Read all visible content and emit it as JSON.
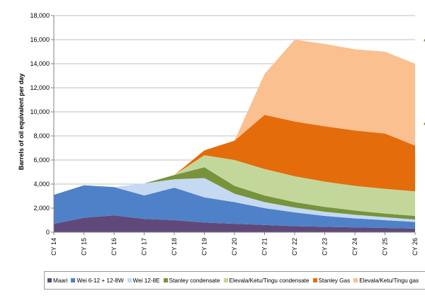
{
  "chart_data": {
    "type": "area",
    "stacked": true,
    "ylabel": "Barrels of oil equivalent per day",
    "xlabel": "",
    "categories": [
      "CY 14",
      "CY 15",
      "CY 16",
      "CY 17",
      "CY 18",
      "CY 19",
      "CY 20",
      "CY 21",
      "CY 22",
      "CY 23",
      "CY 24",
      "CY 25",
      "CY 26"
    ],
    "ylim": [
      0,
      18000
    ],
    "yticks": [
      0,
      2000,
      4000,
      6000,
      8000,
      10000,
      12000,
      14000,
      16000,
      18000
    ],
    "ytick_labels": [
      "0",
      "2,000",
      "4,000",
      "6,000",
      "8,000",
      "10,000",
      "12,000",
      "14,000",
      "16,000",
      "18,000"
    ],
    "grid": "horizontal",
    "legend_position": "bottom",
    "series": [
      {
        "name": "Maari",
        "color": "#60497A",
        "values": [
          700,
          1200,
          1400,
          1100,
          1000,
          800,
          700,
          600,
          500,
          450,
          400,
          350,
          300
        ]
      },
      {
        "name": "Wei 6-12 + 12-8W",
        "color": "#4F81C8",
        "values": [
          2400,
          2700,
          2350,
          1950,
          2700,
          2100,
          1800,
          1400,
          1150,
          900,
          750,
          650,
          550
        ]
      },
      {
        "name": "Wei 12-8E",
        "color": "#C5D9F1",
        "values": [
          0,
          0,
          0,
          1000,
          700,
          1600,
          700,
          500,
          400,
          350,
          300,
          250,
          200
        ]
      },
      {
        "name": "Stanley condensate",
        "color": "#77933C",
        "values": [
          0,
          0,
          0,
          0,
          350,
          900,
          650,
          550,
          450,
          400,
          350,
          300,
          300
        ]
      },
      {
        "name": "Elevala/Ketu/Tingu condensate",
        "color": "#C4D79B",
        "values": [
          0,
          0,
          0,
          0,
          0,
          1000,
          2150,
          2200,
          2150,
          2100,
          2050,
          2050,
          2050
        ]
      },
      {
        "name": "Stanley Gas",
        "color": "#E46C0A",
        "values": [
          0,
          0,
          0,
          0,
          0,
          400,
          1600,
          4500,
          4550,
          4600,
          4600,
          4600,
          3800
        ]
      },
      {
        "name": "Elevala/Ketu/Tingu gas",
        "color": "#FAC090",
        "values": [
          0,
          0,
          0,
          0,
          0,
          0,
          0,
          3400,
          6800,
          6850,
          6750,
          6800,
          6800
        ]
      }
    ]
  }
}
